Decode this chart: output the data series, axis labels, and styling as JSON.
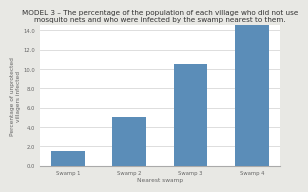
{
  "title": "MODEL 3 – The percentage of the population of each village who did not use\nmosquito nets and who were infected by the swamp nearest to them.",
  "xlabel": "Nearest swamp",
  "ylabel": "Percentage of unprotected\nvillagers infected",
  "categories": [
    "Swamp 1",
    "Swamp 2",
    "Swamp 3",
    "Swamp 4"
  ],
  "values": [
    1.5,
    5.0,
    10.5,
    14.5
  ],
  "bar_color": "#5b8db8",
  "ylim": [
    0,
    14.5
  ],
  "yticks": [
    0,
    2,
    4,
    6,
    8,
    10,
    12,
    14
  ],
  "ytick_labels": [
    "0.0",
    "2.0",
    "4.0",
    "6.0",
    "8.0",
    "10.0",
    "12.0",
    "14.0"
  ],
  "fig_bg_color": "#e8e8e4",
  "plot_bg_color": "#ffffff",
  "grid_color": "#d8d8d8",
  "title_fontsize": 5.2,
  "label_fontsize": 4.2,
  "tick_fontsize": 3.8,
  "title_color": "#333333",
  "text_color": "#666666"
}
